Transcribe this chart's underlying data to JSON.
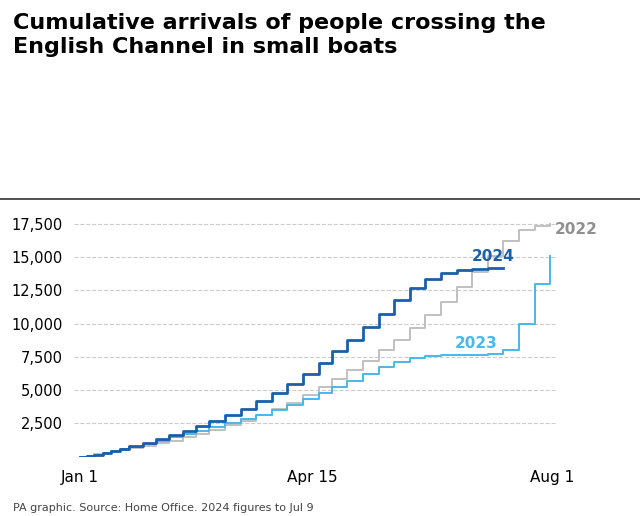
{
  "title": "Cumulative arrivals of people crossing the\nEnglish Channel in small boats",
  "source": "PA graphic. Source: Home Office. 2024 figures to Jul 9",
  "background_color": "#ffffff",
  "title_color": "#000000",
  "title_fontsize": 16,
  "yticks": [
    2500,
    5000,
    7500,
    10000,
    12500,
    15000,
    17500
  ],
  "xtick_labels": [
    "Jan 1",
    "Apr 15",
    "Aug 1"
  ],
  "ylim": [
    0,
    18800
  ],
  "series": {
    "2022": {
      "color": "#c0c0c0",
      "label": "2022",
      "label_color": "#909090"
    },
    "2023": {
      "color": "#4ab8e8",
      "label": "2023",
      "label_color": "#4ab8e8"
    },
    "2024": {
      "color": "#1a5fa8",
      "label": "2024",
      "label_color": "#1a5fa8"
    }
  },
  "data_2022": {
    "days": [
      0,
      3,
      6,
      10,
      14,
      18,
      22,
      28,
      34,
      40,
      46,
      52,
      58,
      65,
      72,
      79,
      86,
      93,
      100,
      107,
      113,
      120,
      127,
      134,
      141,
      148,
      155,
      162,
      169,
      176,
      183,
      190,
      197,
      204,
      211
    ],
    "values": [
      0,
      80,
      180,
      280,
      400,
      520,
      650,
      820,
      1000,
      1200,
      1450,
      1700,
      2000,
      2350,
      2700,
      3100,
      3550,
      4050,
      4600,
      5200,
      5800,
      6500,
      7200,
      8000,
      8800,
      9700,
      10650,
      11650,
      12750,
      13900,
      15100,
      16200,
      17000,
      17300,
      17500
    ]
  },
  "data_2023": {
    "days": [
      0,
      3,
      6,
      10,
      14,
      18,
      22,
      28,
      34,
      40,
      46,
      52,
      58,
      65,
      72,
      79,
      86,
      93,
      100,
      107,
      113,
      120,
      127,
      134,
      141,
      148,
      155,
      162,
      169,
      176,
      183,
      190,
      197,
      204,
      211
    ],
    "values": [
      0,
      50,
      130,
      250,
      400,
      570,
      750,
      980,
      1200,
      1450,
      1700,
      1950,
      2200,
      2500,
      2800,
      3100,
      3500,
      3900,
      4300,
      4750,
      5200,
      5700,
      6200,
      6700,
      7100,
      7400,
      7550,
      7600,
      7620,
      7650,
      7700,
      8000,
      10000,
      13000,
      15100
    ]
  },
  "data_2024": {
    "days": [
      0,
      3,
      6,
      10,
      14,
      18,
      22,
      28,
      34,
      40,
      46,
      52,
      58,
      65,
      72,
      79,
      86,
      93,
      100,
      107,
      113,
      120,
      127,
      134,
      141,
      148,
      155,
      162,
      169,
      176,
      183,
      190
    ],
    "values": [
      0,
      60,
      150,
      280,
      430,
      610,
      800,
      1050,
      1320,
      1620,
      1950,
      2280,
      2650,
      3100,
      3600,
      4150,
      4750,
      5450,
      6200,
      7050,
      7900,
      8800,
      9750,
      10750,
      11750,
      12650,
      13350,
      13800,
      14000,
      14100,
      14150,
      14200
    ]
  },
  "jan1_day": 0,
  "apr15_day": 104,
  "aug1_day": 212
}
